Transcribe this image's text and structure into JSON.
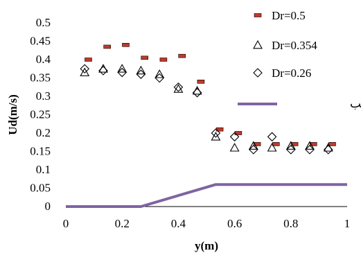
{
  "chart_data": {
    "type": "scatter",
    "title": "",
    "xlabel": "y(m)",
    "ylabel": "Ud(m/s)",
    "xlim": [
      0,
      1
    ],
    "ylim": [
      0,
      0.5
    ],
    "x_ticks": [
      "0",
      "0.2",
      "0.4",
      "0.6",
      "0.8",
      "1"
    ],
    "y_ticks": [
      "0",
      "0.05",
      "0.1",
      "0.15",
      "0.2",
      "0.25",
      "0.3",
      "0.35",
      "0.4",
      "0.45",
      "0.5"
    ],
    "grid": false,
    "legend_position": "right",
    "series": [
      {
        "name": "Dr=0.5",
        "marker": "dash",
        "color": "#c0392b",
        "x": [
          0.08,
          0.147,
          0.213,
          0.28,
          0.347,
          0.413,
          0.48,
          0.547,
          0.613,
          0.68,
          0.747,
          0.813,
          0.88,
          0.947
        ],
        "y": [
          0.4,
          0.435,
          0.44,
          0.405,
          0.4,
          0.41,
          0.34,
          0.21,
          0.2,
          0.17,
          0.17,
          0.17,
          0.17,
          0.17
        ]
      },
      {
        "name": "Dr=0.354",
        "marker": "triangle",
        "color": "#000000",
        "x": [
          0.067,
          0.133,
          0.2,
          0.267,
          0.333,
          0.4,
          0.467,
          0.533,
          0.6,
          0.667,
          0.733,
          0.8,
          0.867,
          0.933
        ],
        "y": [
          0.365,
          0.375,
          0.375,
          0.37,
          0.36,
          0.32,
          0.315,
          0.19,
          0.16,
          0.165,
          0.16,
          0.165,
          0.165,
          0.16
        ]
      },
      {
        "name": "Dr=0.26",
        "marker": "diamond",
        "color": "#000000",
        "x": [
          0.067,
          0.133,
          0.2,
          0.267,
          0.333,
          0.4,
          0.467,
          0.533,
          0.6,
          0.667,
          0.733,
          0.8,
          0.867,
          0.933
        ],
        "y": [
          0.375,
          0.37,
          0.365,
          0.36,
          0.35,
          0.325,
          0.31,
          0.2,
          0.19,
          0.155,
          0.19,
          0.155,
          0.155,
          0.155
        ]
      },
      {
        "name": "مقطع کانال مرکب",
        "marker": "line",
        "color": "#8064a2",
        "x": [
          0,
          0.267,
          0.533,
          1
        ],
        "y": [
          0,
          0,
          0.06,
          0.06
        ]
      }
    ]
  }
}
